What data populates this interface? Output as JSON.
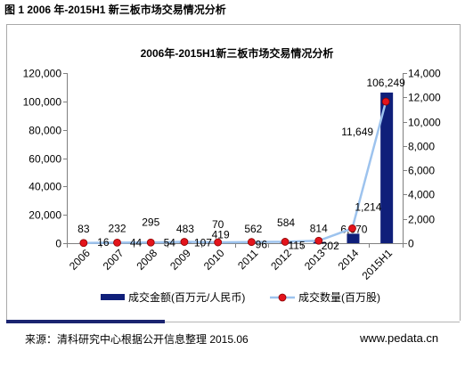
{
  "figure_caption": "图 1 2006 年-2015H1 新三板市场交易情况分析",
  "source_note": "来源：清科研究中心根据公开信息整理 2015.06",
  "website": "www.pedata.cn",
  "colors": {
    "bar": "#0f1f7a",
    "line": "#9dc3ee",
    "marker": "#e3141c",
    "marker_edge": "#8b0000"
  },
  "chart_data": {
    "type": "bar",
    "title": "2006年-2015H1新三板市场交易情况分析",
    "categories": [
      "2006",
      "2007",
      "2008",
      "2009",
      "2010",
      "2011",
      "2012",
      "2013",
      "2014",
      "2015H1"
    ],
    "series": [
      {
        "name": "成交金额(百万元/人民币)",
        "type": "bar",
        "axis": "left",
        "values": [
          83,
          232,
          295,
          483,
          419,
          562,
          584,
          814,
          6670,
          106249
        ]
      },
      {
        "name": "成交数量(百万股)",
        "type": "line",
        "axis": "right",
        "values": [
          16,
          44,
          54,
          107,
          70,
          96,
          115,
          202,
          1214,
          11649
        ]
      }
    ],
    "ylim": [
      0,
      120000
    ],
    "y_ticks": [
      0,
      20000,
      40000,
      60000,
      80000,
      100000,
      120000
    ],
    "y2lim": [
      0,
      14000
    ],
    "y2_ticks": [
      0,
      2000,
      4000,
      6000,
      8000,
      10000,
      12000,
      14000
    ],
    "data_labels": true,
    "grid": false,
    "legend": "bottom"
  }
}
